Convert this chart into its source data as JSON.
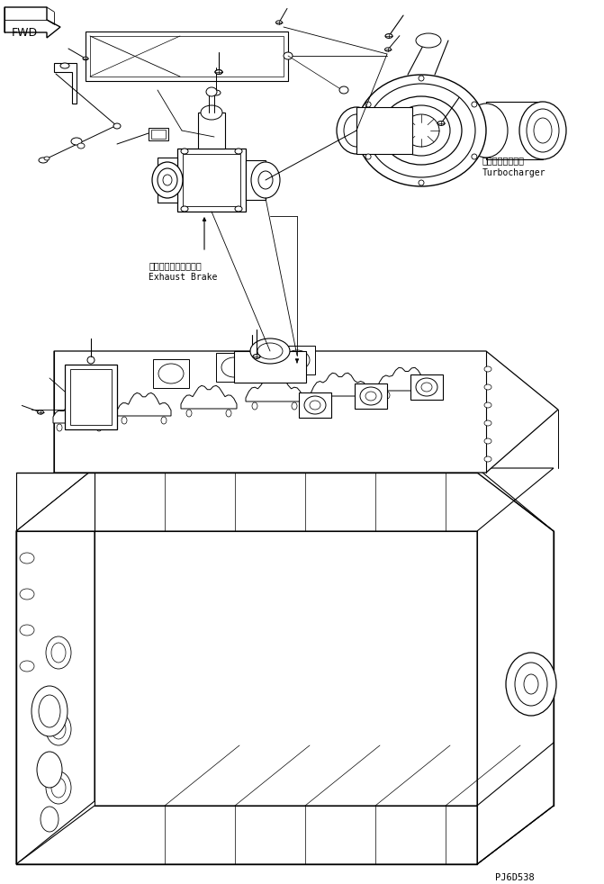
{
  "background_color": "#ffffff",
  "line_color": "#000000",
  "fig_width": 6.71,
  "fig_height": 9.82,
  "dpi": 100,
  "label_turbocharger_jp": "ターボチャージャ",
  "label_turbocharger_en": "Turbocharger",
  "label_exhaust_brake_jp": "エキゾーストブレーキ",
  "label_exhaust_brake_en": "Exhaust Brake",
  "label_fwd": "FWD",
  "label_code": "PJ6D538",
  "font_size_label": 7.0,
  "font_size_code": 7.5
}
